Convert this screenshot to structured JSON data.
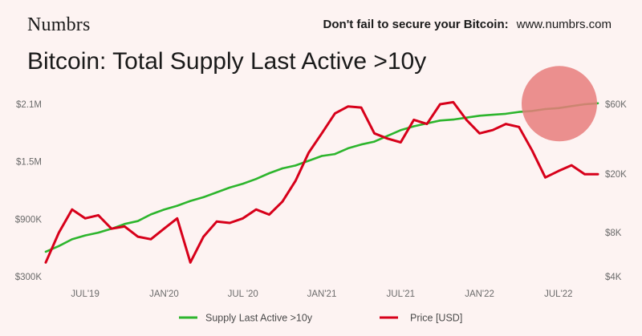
{
  "header": {
    "brand": "Numbrs",
    "promo_text": "Don't fail to secure your Bitcoin:",
    "promo_url": "www.numbrs.com",
    "title": "Bitcoin: Total Supply Last Active >10y"
  },
  "colors": {
    "background": "#fdf3f2",
    "supply_line": "#2db52d",
    "price_line": "#d7001a",
    "highlight_circle": "#e87c7c"
  },
  "chart_data": {
    "type": "line",
    "title": "Bitcoin: Total Supply Last Active >10y",
    "x_tick_labels": [
      "JUL'19",
      "JAN'20",
      "JUL '20",
      "JAN'21",
      "JUL'21",
      "JAN'22",
      "JUL'22"
    ],
    "x_ticks": [
      "2019-07",
      "2020-01",
      "2020-07",
      "2021-01",
      "2021-07",
      "2022-01",
      "2022-07"
    ],
    "x_range": [
      "2019-04",
      "2022-10"
    ],
    "y_left": {
      "scale": "linear",
      "range": [
        300000,
        2100000
      ],
      "tick_labels": [
        "$300K",
        "$900K",
        "$1.5M",
        "$2.1M"
      ],
      "ticks": [
        300000,
        900000,
        1500000,
        2100000
      ]
    },
    "y_right": {
      "scale": "log",
      "range": [
        4000,
        60000
      ],
      "tick_labels": [
        "$4K",
        "$8K",
        "$20K",
        "$60K"
      ],
      "ticks": [
        4000,
        8000,
        20000,
        60000
      ]
    },
    "grid": false,
    "legend_position": "bottom",
    "series": [
      {
        "name": "Supply Last Active >10y",
        "axis": "left",
        "x": [
          "2019-04",
          "2019-05",
          "2019-06",
          "2019-07",
          "2019-08",
          "2019-09",
          "2019-10",
          "2019-11",
          "2019-12",
          "2020-01",
          "2020-02",
          "2020-03",
          "2020-04",
          "2020-05",
          "2020-06",
          "2020-07",
          "2020-08",
          "2020-09",
          "2020-10",
          "2020-11",
          "2020-12",
          "2021-01",
          "2021-02",
          "2021-03",
          "2021-04",
          "2021-05",
          "2021-06",
          "2021-07",
          "2021-08",
          "2021-09",
          "2021-10",
          "2021-11",
          "2021-12",
          "2022-01",
          "2022-02",
          "2022-03",
          "2022-04",
          "2022-05",
          "2022-06",
          "2022-07",
          "2022-08",
          "2022-09",
          "2022-10"
        ],
        "values": [
          560000,
          620000,
          690000,
          730000,
          760000,
          800000,
          850000,
          880000,
          950000,
          1000000,
          1040000,
          1090000,
          1130000,
          1180000,
          1230000,
          1270000,
          1320000,
          1380000,
          1430000,
          1460000,
          1510000,
          1560000,
          1580000,
          1640000,
          1680000,
          1710000,
          1770000,
          1830000,
          1870000,
          1900000,
          1930000,
          1940000,
          1960000,
          1980000,
          1990000,
          2000000,
          2020000,
          2030000,
          2050000,
          2060000,
          2080000,
          2100000,
          2110000
        ]
      },
      {
        "name": "Price [USD]",
        "axis": "right",
        "x": [
          "2019-04",
          "2019-05",
          "2019-06",
          "2019-07",
          "2019-08",
          "2019-09",
          "2019-10",
          "2019-11",
          "2019-12",
          "2020-01",
          "2020-02",
          "2020-03",
          "2020-04",
          "2020-05",
          "2020-06",
          "2020-07",
          "2020-08",
          "2020-09",
          "2020-10",
          "2020-11",
          "2020-12",
          "2021-01",
          "2021-02",
          "2021-03",
          "2021-04",
          "2021-05",
          "2021-06",
          "2021-07",
          "2021-08",
          "2021-09",
          "2021-10",
          "2021-11",
          "2021-12",
          "2022-01",
          "2022-02",
          "2022-03",
          "2022-04",
          "2022-05",
          "2022-06",
          "2022-07",
          "2022-08",
          "2022-09",
          "2022-10"
        ],
        "values": [
          5000,
          8000,
          11500,
          10000,
          10500,
          8500,
          8800,
          7500,
          7200,
          8500,
          10000,
          5000,
          7500,
          9500,
          9300,
          10000,
          11500,
          10600,
          13000,
          18000,
          28000,
          38000,
          52000,
          58000,
          57000,
          38000,
          35000,
          33000,
          47000,
          44000,
          60000,
          62000,
          47000,
          38000,
          40000,
          44000,
          42000,
          29000,
          19000,
          21000,
          23000,
          20000,
          20000
        ]
      }
    ]
  },
  "legend": {
    "supply_label": "Supply Last Active >10y",
    "price_label": "Price [USD]"
  }
}
